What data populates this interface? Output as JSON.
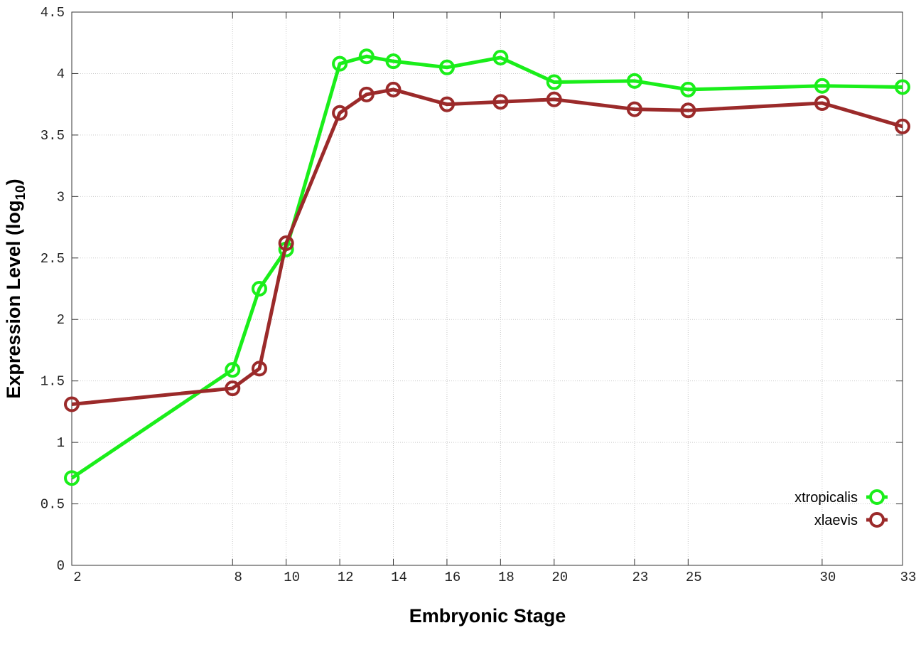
{
  "chart_data": {
    "type": "line",
    "xlabel": "Embryonic Stage",
    "ylabel": {
      "text": "Expression Level (log",
      "subscript": "10",
      "close": ")"
    },
    "x": [
      2,
      8,
      9,
      10,
      12,
      13,
      14,
      16,
      18,
      20,
      23,
      25,
      30,
      33
    ],
    "series": [
      {
        "name": "xtropicalis",
        "color": "#1aee1a",
        "values": [
          0.71,
          1.59,
          2.25,
          2.57,
          4.08,
          4.14,
          4.1,
          4.05,
          4.13,
          3.93,
          3.94,
          3.87,
          3.9,
          3.89
        ]
      },
      {
        "name": "xlaevis",
        "color": "#9b2a2a",
        "values": [
          1.31,
          1.44,
          1.6,
          2.62,
          3.68,
          3.83,
          3.87,
          3.75,
          3.77,
          3.79,
          3.71,
          3.7,
          3.76,
          3.57
        ]
      }
    ],
    "xlim": [
      2,
      33
    ],
    "xticks": [
      2,
      8,
      10,
      12,
      14,
      16,
      18,
      20,
      23,
      25,
      30,
      33
    ],
    "ylim": [
      0,
      4.5
    ],
    "yticks": [
      0,
      0.5,
      1,
      1.5,
      2,
      2.5,
      3,
      3.5,
      4,
      4.5
    ],
    "grid": true,
    "legend": "lower right"
  }
}
